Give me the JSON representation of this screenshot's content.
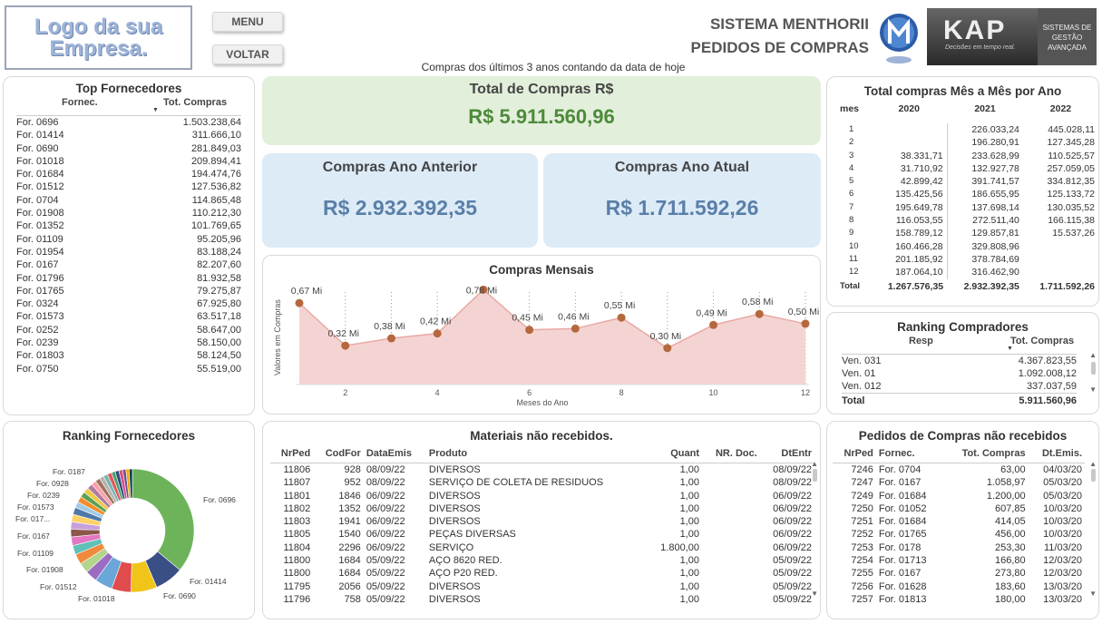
{
  "header": {
    "logo_text": "Logo da sua Empresa.",
    "menu_label": "MENU",
    "back_label": "VOLTAR",
    "system_line1": "SISTEMA MENTHORII",
    "system_line2": "PEDIDOS DE COMPRAS",
    "subtitle": "Compras dos últimos 3 anos contando da data de hoje",
    "kap_logo": "KAP",
    "kap_tagline": "Decisões em tempo real.",
    "kap_right": "SISTEMAS DE GESTÃO AVANÇADA"
  },
  "top_fornecedores": {
    "title": "Top Fornecedores",
    "col1": "Fornec.",
    "col2": "Tot. Compras",
    "rows": [
      [
        "For. 0696",
        "1.503.238,64"
      ],
      [
        "For. 01414",
        "311.666,10"
      ],
      [
        "For. 0690",
        "281.849,03"
      ],
      [
        "For. 01018",
        "209.894,41"
      ],
      [
        "For. 01684",
        "194.474,76"
      ],
      [
        "For. 01512",
        "127.536,82"
      ],
      [
        "For. 0704",
        "114.865,48"
      ],
      [
        "For. 01908",
        "110.212,30"
      ],
      [
        "For. 01352",
        "101.769,65"
      ],
      [
        "For. 01109",
        "95.205,96"
      ],
      [
        "For. 01954",
        "83.188,24"
      ],
      [
        "For. 0167",
        "82.207,60"
      ],
      [
        "For. 01796",
        "81.932,58"
      ],
      [
        "For. 01765",
        "79.275,87"
      ],
      [
        "For. 0324",
        "67.925,80"
      ],
      [
        "For. 01573",
        "63.517,18"
      ],
      [
        "For. 0252",
        "58.647,00"
      ],
      [
        "For. 0239",
        "58.150,00"
      ],
      [
        "For. 01803",
        "58.124,50"
      ],
      [
        "For. 0750",
        "55.519,00"
      ]
    ]
  },
  "kpis": {
    "total_title": "Total de Compras R$",
    "total_value": "R$ 5.911.560,96",
    "anterior_title": "Compras Ano Anterior",
    "anterior_value": "R$ 2.932.392,35",
    "atual_title": "Compras Ano Atual",
    "atual_value": "R$ 1.711.592,26",
    "green": "#4e8a3a",
    "blue": "#5a7fa8"
  },
  "compras_mensais": {
    "title": "Compras Mensais",
    "xlabel": "Meses do Ano",
    "ylabel": "Valores em Compras"
  },
  "chart_data": {
    "type": "area",
    "title": "Compras Mensais",
    "xlabel": "Meses do Ano",
    "ylabel": "Valores em Compras",
    "x": [
      1,
      2,
      3,
      4,
      5,
      6,
      7,
      8,
      9,
      10,
      11,
      12
    ],
    "values": [
      0.67,
      0.32,
      0.38,
      0.42,
      0.78,
      0.45,
      0.46,
      0.55,
      0.3,
      0.49,
      0.58,
      0.5
    ],
    "labels": [
      "0,67 Mi",
      "0,32 Mi",
      "0,38 Mi",
      "0,42 Mi",
      "0,78 Mi",
      "0,45 Mi",
      "0,46 Mi",
      "0,55 Mi",
      "0,30 Mi",
      "0,49 Mi",
      "0,58 Mi",
      "0,50 Mi"
    ],
    "x_ticks": [
      "2",
      "4",
      "6",
      "8",
      "10",
      "12"
    ],
    "fill": "#f4d4d2",
    "line": "#e8a9a5",
    "marker": "#b5683e"
  },
  "mes_a_mes": {
    "title": "Total compras Mês a Mês por Ano",
    "cols": [
      "mes",
      "2020",
      "2021",
      "2022"
    ],
    "rows": [
      [
        "1",
        "",
        "226.033,24",
        "445.028,11"
      ],
      [
        "2",
        "",
        "196.280,91",
        "127.345,28"
      ],
      [
        "3",
        "38.331,71",
        "233.628,99",
        "110.525,57"
      ],
      [
        "4",
        "31.710,92",
        "132.927,78",
        "257.059,05"
      ],
      [
        "5",
        "42.899,42",
        "391.741,57",
        "334.812,35"
      ],
      [
        "6",
        "135.425,56",
        "186.655,95",
        "125.133,72"
      ],
      [
        "7",
        "195.649,78",
        "137.698,14",
        "130.035,52"
      ],
      [
        "8",
        "116.053,55",
        "272.511,40",
        "166.115,38"
      ],
      [
        "9",
        "158.789,12",
        "129.857,81",
        "15.537,26"
      ],
      [
        "10",
        "160.466,28",
        "329.808,96",
        ""
      ],
      [
        "11",
        "201.185,92",
        "378.784,69",
        ""
      ],
      [
        "12",
        "187.064,10",
        "316.462,90",
        ""
      ]
    ],
    "total": [
      "Total",
      "1.267.576,35",
      "2.932.392,35",
      "1.711.592,26"
    ]
  },
  "ranking_compradores": {
    "title": "Ranking Compradores",
    "col1": "Resp",
    "col2": "Tot. Compras",
    "rows": [
      [
        "Ven. 031",
        "4.367.823,55"
      ],
      [
        "Ven. 01",
        "1.092.008,12"
      ],
      [
        "Ven. 012",
        "337.037,59"
      ]
    ],
    "total": [
      "Total",
      "5.911.560,96"
    ]
  },
  "ranking_fornecedores": {
    "title": "Ranking Fornecedores",
    "labels": {
      "f0696": "For. 0696",
      "f01414": "For. 01414",
      "f0690": "For. 0690",
      "f01018": "For. 01018",
      "f01512": "For. 01512",
      "f01908": "For. 01908",
      "f01109": "For. 01109",
      "f0167": "For. 0167",
      "f017": "For. 017...",
      "f01573": "For. 01573",
      "f0239": "For. 0239",
      "f0928": "For. 0928",
      "f0187": "For. 0187"
    },
    "slices": [
      25.4,
      5.3,
      4.8,
      3.6,
      3.3,
      2.2,
      1.9,
      1.9,
      1.7,
      1.6,
      1.4,
      1.4,
      1.4,
      1.3,
      1.1,
      1.1,
      1.0,
      1.0,
      1.0,
      0.9,
      0.9,
      0.8,
      0.8,
      0.8,
      0.7,
      0.7,
      0.7,
      0.6,
      0.6,
      0.6
    ],
    "colors": [
      "#6db35a",
      "#3a4f86",
      "#f0c419",
      "#e04c4c",
      "#6aa6d8",
      "#9b6cc2",
      "#b2d58b",
      "#f08a3c",
      "#5fc1b8",
      "#e377c2",
      "#8c564b",
      "#c7a1dd",
      "#ffd166",
      "#4e79a7",
      "#a0cbe8",
      "#f28e2b",
      "#59a14f",
      "#edc948",
      "#b07aa1",
      "#ff9da7",
      "#9c755f",
      "#bab0ac",
      "#76b7b2",
      "#e15759",
      "#4c9f70",
      "#2f4b7c",
      "#d45087",
      "#665191",
      "#ffa600",
      "#003f5c"
    ]
  },
  "materiais": {
    "title": "Materiais não recebidos.",
    "cols": [
      "NrPed",
      "CodFor",
      "DataEmis",
      "Produto",
      "Quant",
      "NR. Doc.",
      "DtEntr"
    ],
    "rows": [
      [
        "11806",
        "928",
        "08/09/22",
        "DIVERSOS",
        "1,00",
        "",
        "08/09/22"
      ],
      [
        "11807",
        "952",
        "08/09/22",
        "SERVIÇO DE COLETA DE RESIDUOS",
        "1,00",
        "",
        "08/09/22"
      ],
      [
        "11801",
        "1846",
        "06/09/22",
        "DIVERSOS",
        "1,00",
        "",
        "06/09/22"
      ],
      [
        "11802",
        "1352",
        "06/09/22",
        "DIVERSOS",
        "1,00",
        "",
        "06/09/22"
      ],
      [
        "11803",
        "1941",
        "06/09/22",
        "DIVERSOS",
        "1,00",
        "",
        "06/09/22"
      ],
      [
        "11805",
        "1540",
        "06/09/22",
        "PEÇAS DIVERSAS",
        "1,00",
        "",
        "06/09/22"
      ],
      [
        "11804",
        "2296",
        "06/09/22",
        "SERVIÇO",
        "1.800,00",
        "",
        "06/09/22"
      ],
      [
        "11800",
        "1684",
        "05/09/22",
        "AÇO 8620 RED.",
        "1,00",
        "",
        "05/09/22"
      ],
      [
        "11800",
        "1684",
        "05/09/22",
        "AÇO P20 RED.",
        "1,00",
        "",
        "05/09/22"
      ],
      [
        "11795",
        "2056",
        "05/09/22",
        "DIVERSOS",
        "1,00",
        "",
        "05/09/22"
      ],
      [
        "11796",
        "758",
        "05/09/22",
        "DIVERSOS",
        "1,00",
        "",
        "05/09/22"
      ]
    ]
  },
  "pedidos": {
    "title": "Pedidos de Compras não recebidos",
    "cols": [
      "NrPed",
      "Fornec.",
      "Tot. Compras",
      "Dt.Emis."
    ],
    "rows": [
      [
        "7246",
        "For. 0704",
        "63,00",
        "04/03/20"
      ],
      [
        "7247",
        "For. 0167",
        "1.058,97",
        "05/03/20"
      ],
      [
        "7249",
        "For. 01684",
        "1.200,00",
        "05/03/20"
      ],
      [
        "7250",
        "For. 01052",
        "607,85",
        "10/03/20"
      ],
      [
        "7251",
        "For. 01684",
        "414,05",
        "10/03/20"
      ],
      [
        "7252",
        "For. 01765",
        "456,00",
        "10/03/20"
      ],
      [
        "7253",
        "For. 0178",
        "253,30",
        "11/03/20"
      ],
      [
        "7254",
        "For. 01713",
        "166,80",
        "12/03/20"
      ],
      [
        "7255",
        "For. 0167",
        "273,80",
        "12/03/20"
      ],
      [
        "7256",
        "For. 01628",
        "183,60",
        "13/03/20"
      ],
      [
        "7257",
        "For. 01813",
        "180,00",
        "13/03/20"
      ]
    ]
  }
}
